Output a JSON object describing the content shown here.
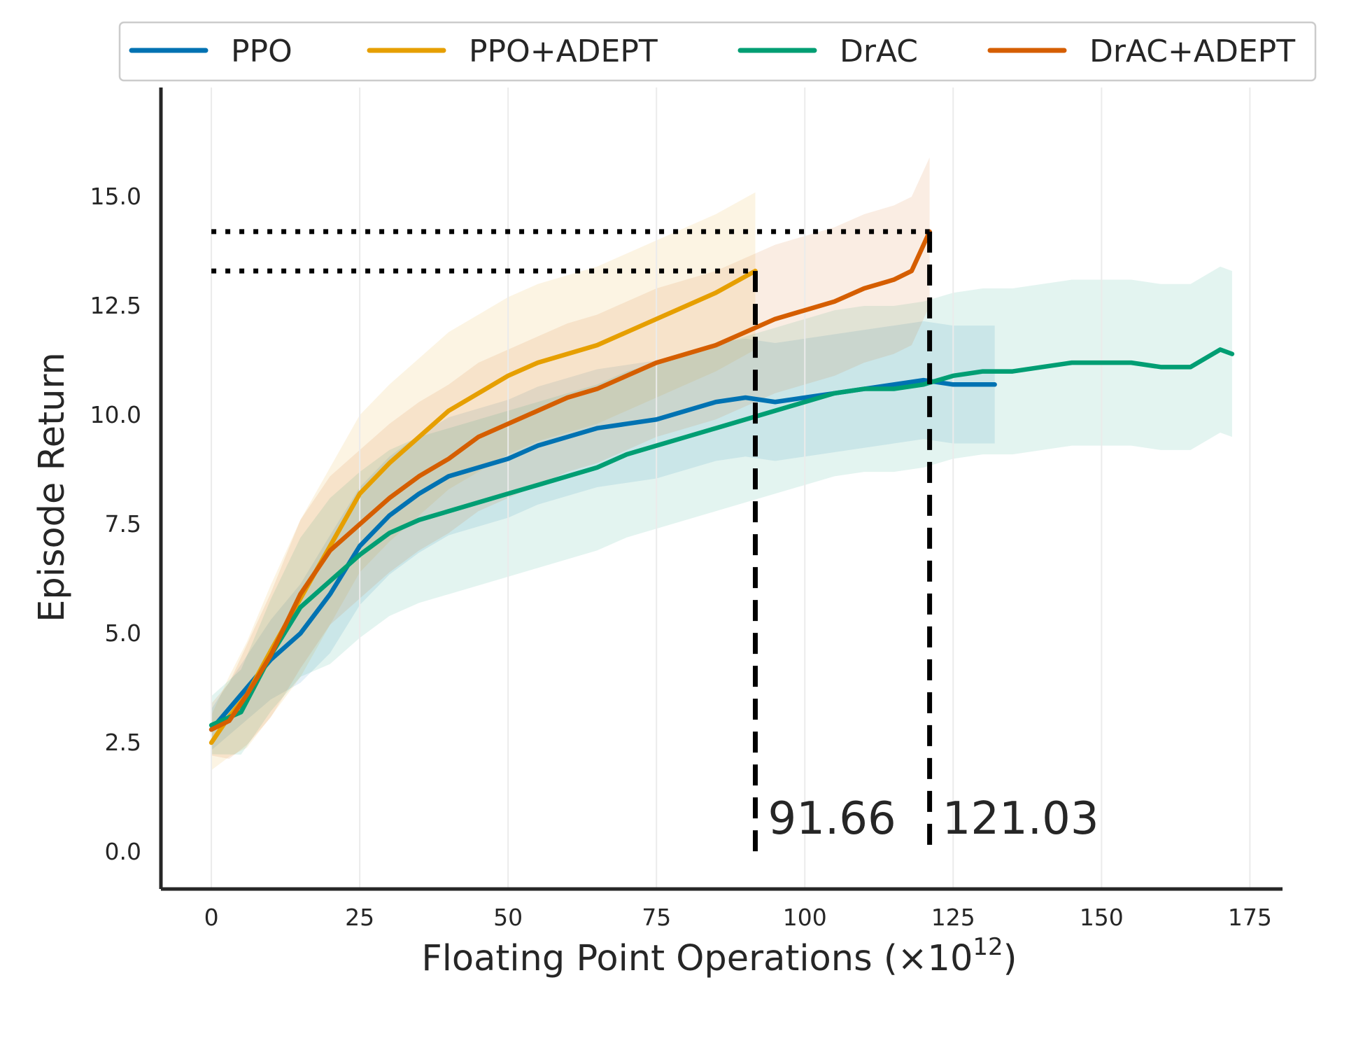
{
  "chart_data": {
    "type": "line",
    "xlabel_main": "Floating Point Operations (×10",
    "xlabel_sup": "12",
    "xlabel_end": ")",
    "ylabel": "Episode Return",
    "xlim": [
      -8.5,
      180.5
    ],
    "ylim": [
      -0.85,
      17.5
    ],
    "x_ticks": [
      0,
      25,
      50,
      75,
      100,
      125,
      150,
      175
    ],
    "y_ticks": [
      0.0,
      2.5,
      5.0,
      7.5,
      10.0,
      12.5,
      15.0
    ],
    "x_tick_labels": [
      "0",
      "25",
      "50",
      "75",
      "100",
      "125",
      "150",
      "175"
    ],
    "y_tick_labels": [
      "0.0",
      "2.5",
      "5.0",
      "7.5",
      "10.0",
      "12.5",
      "15.0"
    ],
    "grid": "vertical",
    "legend_position": "top",
    "series": [
      {
        "name": "PPO",
        "color": "#0072b2",
        "x": [
          0,
          5,
          10,
          15,
          20,
          25,
          30,
          35,
          40,
          45,
          50,
          55,
          60,
          65,
          70,
          75,
          80,
          85,
          90,
          95,
          100,
          105,
          110,
          115,
          120,
          125,
          132
        ],
        "y": [
          2.8,
          3.6,
          4.4,
          5.0,
          5.9,
          7.0,
          7.7,
          8.2,
          8.6,
          8.8,
          9.0,
          9.3,
          9.5,
          9.7,
          9.8,
          9.9,
          10.1,
          10.3,
          10.4,
          10.3,
          10.4,
          10.5,
          10.6,
          10.7,
          10.8,
          10.7,
          10.7
        ],
        "band_width": 1.35
      },
      {
        "name": "PPO+ADEPT",
        "color": "#e69f00",
        "x": [
          0,
          3,
          6,
          10,
          15,
          20,
          25,
          30,
          35,
          40,
          45,
          50,
          55,
          60,
          65,
          70,
          75,
          80,
          85,
          89,
          91.66
        ],
        "y": [
          2.5,
          3.1,
          3.6,
          4.6,
          5.8,
          7.0,
          8.2,
          8.9,
          9.5,
          10.1,
          10.5,
          10.9,
          11.2,
          11.4,
          11.6,
          11.9,
          12.2,
          12.5,
          12.8,
          13.1,
          13.3
        ],
        "band_width": 1.8
      },
      {
        "name": "DrAC",
        "color": "#009e73",
        "x": [
          0,
          5,
          10,
          15,
          20,
          25,
          30,
          35,
          40,
          45,
          50,
          55,
          60,
          65,
          70,
          75,
          80,
          85,
          90,
          95,
          100,
          105,
          110,
          115,
          120,
          125,
          130,
          135,
          140,
          145,
          150,
          155,
          160,
          165,
          170,
          172
        ],
        "y": [
          2.9,
          3.2,
          4.5,
          5.6,
          6.2,
          6.8,
          7.3,
          7.6,
          7.8,
          8.0,
          8.2,
          8.4,
          8.6,
          8.8,
          9.1,
          9.3,
          9.5,
          9.7,
          9.9,
          10.1,
          10.3,
          10.5,
          10.6,
          10.6,
          10.7,
          10.9,
          11.0,
          11.0,
          11.1,
          11.2,
          11.2,
          11.2,
          11.1,
          11.1,
          11.5,
          11.4
        ],
        "band_width": 1.9
      },
      {
        "name": "DrAC+ADEPT",
        "color": "#d55e00",
        "x": [
          0,
          3,
          6,
          10,
          15,
          20,
          25,
          30,
          35,
          40,
          45,
          50,
          55,
          60,
          65,
          70,
          75,
          80,
          85,
          90,
          95,
          100,
          105,
          110,
          115,
          118,
          121.03
        ],
        "y": [
          2.8,
          3.0,
          3.6,
          4.5,
          5.9,
          6.9,
          7.5,
          8.1,
          8.6,
          9.0,
          9.5,
          9.8,
          10.1,
          10.4,
          10.6,
          10.9,
          11.2,
          11.4,
          11.6,
          11.9,
          12.2,
          12.4,
          12.6,
          12.9,
          13.1,
          13.3,
          14.2
        ],
        "band_width": 1.7
      }
    ],
    "annotations": [
      {
        "text": "91.66",
        "x": 91.66,
        "y": 13.3
      },
      {
        "text": "121.03",
        "x": 121.03,
        "y": 14.2
      }
    ]
  }
}
